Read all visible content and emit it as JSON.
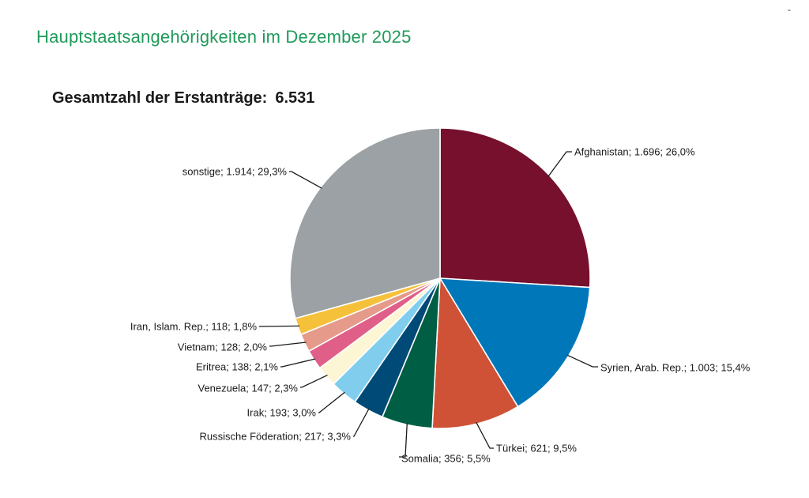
{
  "header": {
    "title": "Hauptstaatsangehörigkeiten im Dezember 2025",
    "corner_mark": "-"
  },
  "summary": {
    "label": "Gesamtzahl der Erstanträge:",
    "value": "6.531"
  },
  "chart_data": {
    "type": "pie",
    "title": "Hauptstaatsangehörigkeiten im Dezember 2025",
    "subtitle": "Gesamtzahl der Erstanträge: 6.531",
    "total": 6531,
    "slices": [
      {
        "name": "Afghanistan",
        "value": 1696,
        "percent": 26.0,
        "label": "Afghanistan; 1.696; 26,0%",
        "color": "#76102d"
      },
      {
        "name": "Syrien, Arab. Rep.",
        "value": 1003,
        "percent": 15.4,
        "label": "Syrien, Arab. Rep.; 1.003; 15,4%",
        "color": "#0077b8"
      },
      {
        "name": "Türkei",
        "value": 621,
        "percent": 9.5,
        "label": "Türkei; 621; 9,5%",
        "color": "#cf5236"
      },
      {
        "name": "Somalia",
        "value": 356,
        "percent": 5.5,
        "label": "Somalia; 356; 5,5%",
        "color": "#005e45"
      },
      {
        "name": "Russische Föderation",
        "value": 217,
        "percent": 3.3,
        "label": "Russische Föderation; 217; 3,3%",
        "color": "#004a77"
      },
      {
        "name": "Irak",
        "value": 193,
        "percent": 3.0,
        "label": "Irak; 193; 3,0%",
        "color": "#80cdee"
      },
      {
        "name": "Venezuela",
        "value": 147,
        "percent": 2.3,
        "label": "Venezuela; 147; 2,3%",
        "color": "#fcf6d4"
      },
      {
        "name": "Eritrea",
        "value": 138,
        "percent": 2.1,
        "label": "Eritrea; 138; 2,1%",
        "color": "#e05f88"
      },
      {
        "name": "Vietnam",
        "value": 128,
        "percent": 2.0,
        "label": "Vietnam; 128; 2,0%",
        "color": "#e59a8a"
      },
      {
        "name": "Iran, Islam. Rep.",
        "value": 118,
        "percent": 1.8,
        "label": "Iran, Islam. Rep.; 118; 1,8%",
        "color": "#f6c13a"
      },
      {
        "name": "sonstige",
        "value": 1914,
        "percent": 29.3,
        "label": "sonstige; 1.914; 29,3%",
        "color": "#9ba1a4"
      }
    ]
  }
}
